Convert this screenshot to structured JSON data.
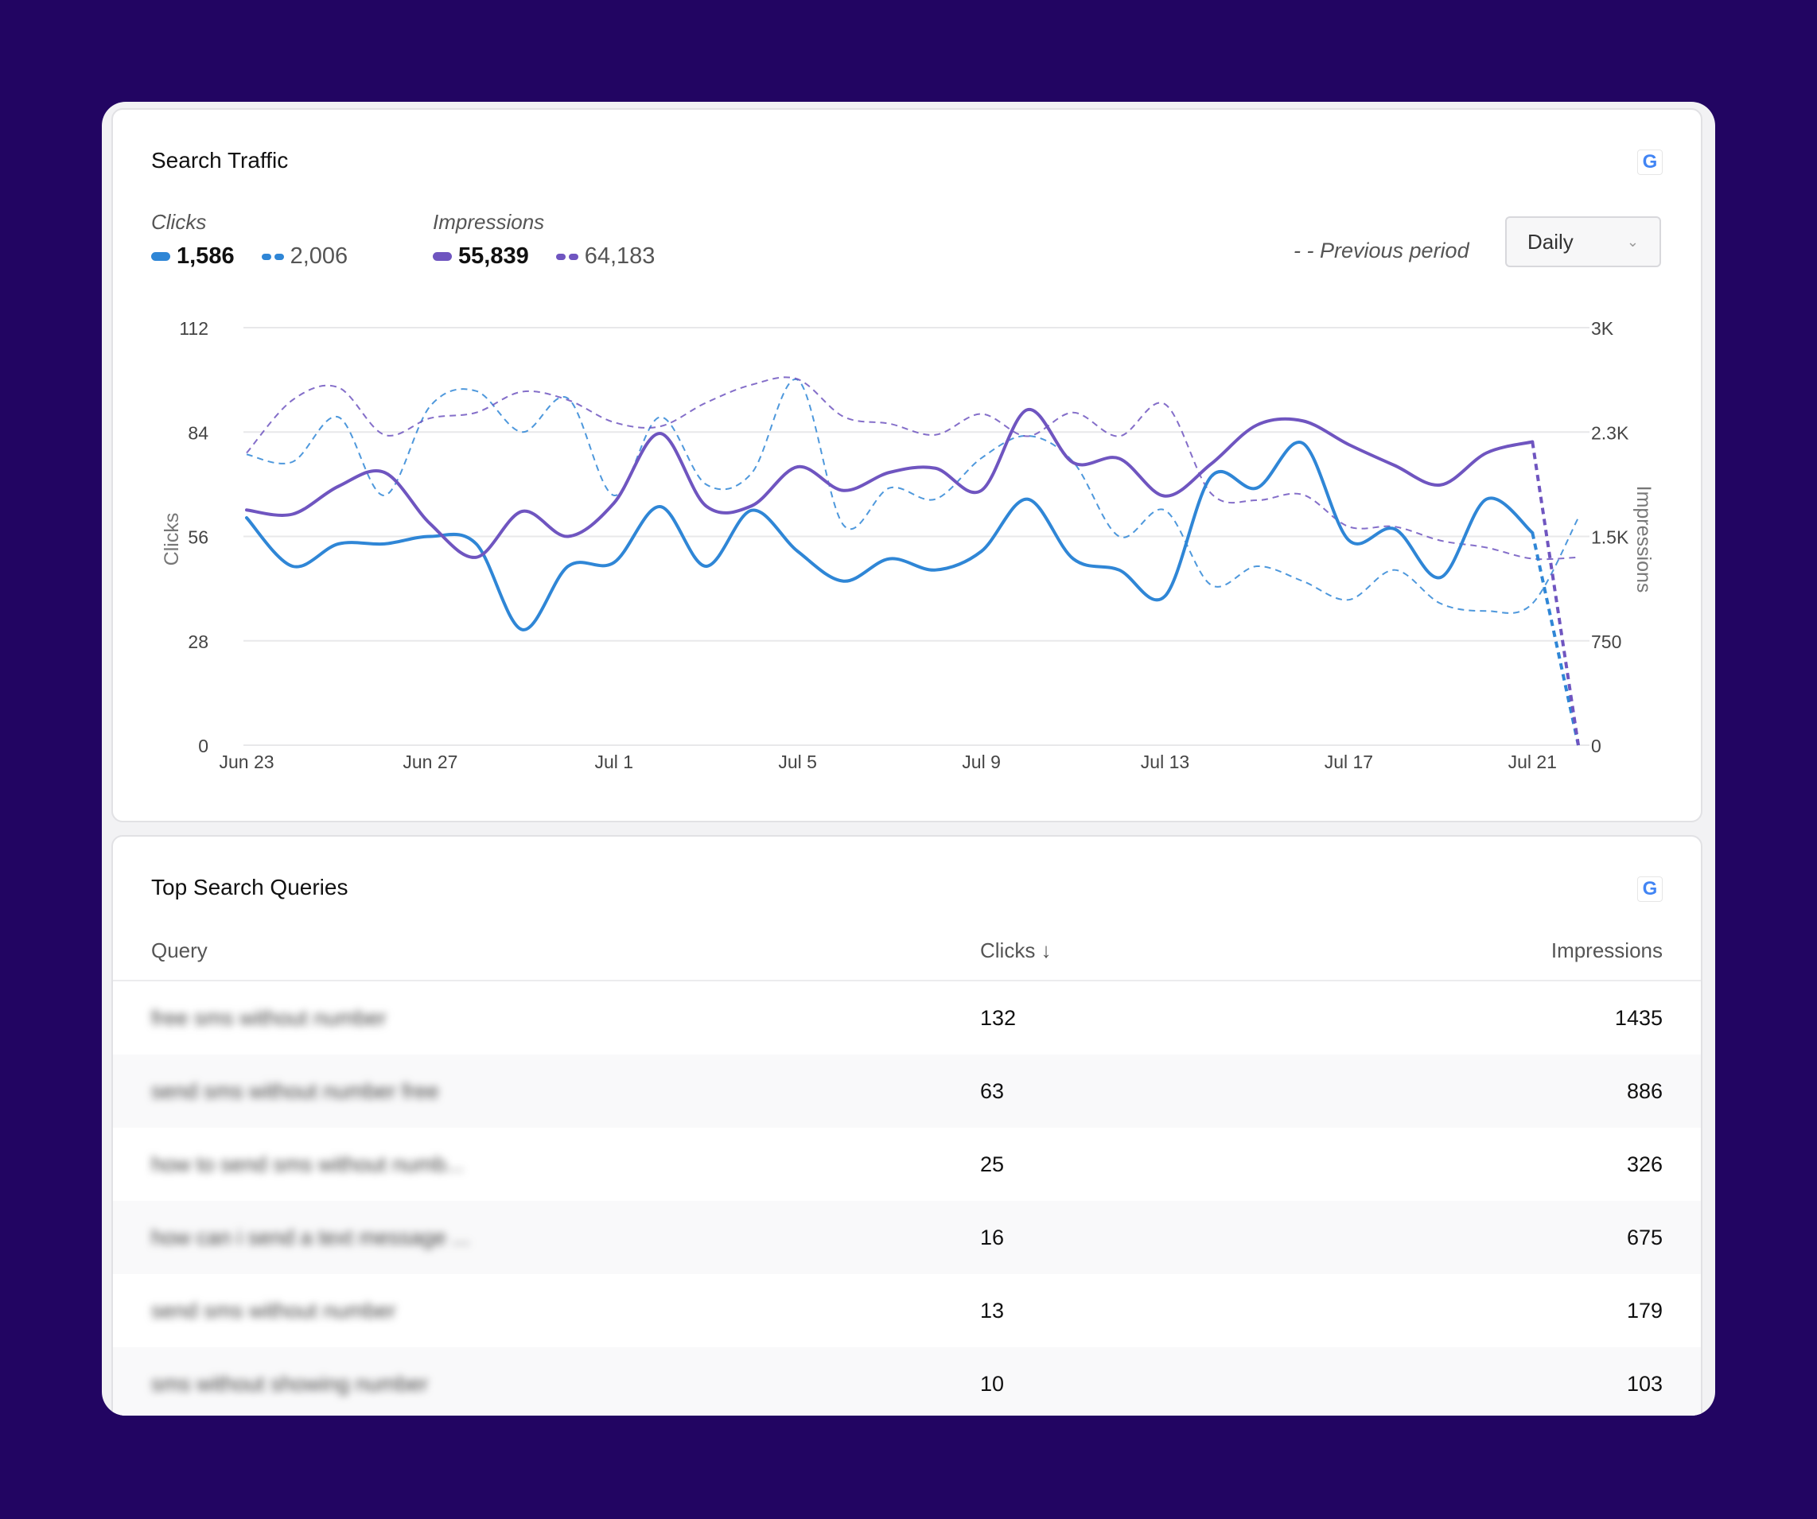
{
  "traffic": {
    "title": "Search Traffic",
    "clicks_label": "Clicks",
    "clicks_current": "1,586",
    "clicks_previous": "2,006",
    "impressions_label": "Impressions",
    "impressions_current": "55,839",
    "impressions_previous": "64,183",
    "previous_period_label": "- - Previous period",
    "granularity": "Daily",
    "colors": {
      "clicks": "#2f86d6",
      "impressions": "#6f55c0"
    }
  },
  "chart_data": {
    "type": "line",
    "title": "",
    "x": [
      "Jun 23",
      "Jun 24",
      "Jun 25",
      "Jun 26",
      "Jun 27",
      "Jun 28",
      "Jun 29",
      "Jun 30",
      "Jul 1",
      "Jul 2",
      "Jul 3",
      "Jul 4",
      "Jul 5",
      "Jul 6",
      "Jul 7",
      "Jul 8",
      "Jul 9",
      "Jul 10",
      "Jul 11",
      "Jul 12",
      "Jul 13",
      "Jul 14",
      "Jul 15",
      "Jul 16",
      "Jul 17",
      "Jul 18",
      "Jul 19",
      "Jul 20",
      "Jul 21",
      "Jul 22"
    ],
    "x_tick_labels": [
      "Jun 23",
      "Jun 27",
      "Jul 1",
      "Jul 5",
      "Jul 9",
      "Jul 13",
      "Jul 17",
      "Jul 21"
    ],
    "ylabel_left": "Clicks",
    "ylabel_right": "Impressions",
    "y_left_ticks": [
      "0",
      "28",
      "56",
      "84",
      "112"
    ],
    "y_right_ticks": [
      "0",
      "750",
      "1.5K",
      "2.3K",
      "3K"
    ],
    "ylim_left": [
      0,
      112
    ],
    "ylim_right": [
      0,
      3000
    ],
    "grid": true,
    "series": [
      {
        "name": "Clicks",
        "axis": "left",
        "style": "solid",
        "values": [
          61,
          48,
          54,
          54,
          56,
          54,
          31,
          48,
          49,
          64,
          48,
          63,
          52,
          44,
          50,
          47,
          52,
          66,
          50,
          47,
          40,
          72,
          69,
          81,
          55,
          58,
          45,
          66,
          57,
          0
        ]
      },
      {
        "name": "Clicks",
        "axis": "left",
        "style": "dashed",
        "period": "previous",
        "values": [
          78,
          76,
          88,
          67,
          91,
          95,
          84,
          93,
          67,
          88,
          70,
          73,
          98,
          59,
          69,
          66,
          77,
          83,
          76,
          56,
          63,
          43,
          48,
          44,
          39,
          47,
          38,
          36,
          38,
          61
        ]
      },
      {
        "name": "Impressions",
        "axis": "right",
        "style": "solid",
        "values": [
          1690,
          1660,
          1860,
          1960,
          1590,
          1350,
          1680,
          1500,
          1740,
          2240,
          1720,
          1720,
          2000,
          1830,
          1960,
          1990,
          1830,
          2410,
          2030,
          2060,
          1790,
          2020,
          2300,
          2330,
          2160,
          2010,
          1870,
          2100,
          2180,
          0
        ]
      },
      {
        "name": "Impressions",
        "axis": "right",
        "style": "dashed",
        "period": "previous",
        "values": [
          2100,
          2480,
          2570,
          2230,
          2350,
          2390,
          2540,
          2480,
          2320,
          2290,
          2460,
          2590,
          2630,
          2360,
          2310,
          2230,
          2380,
          2220,
          2390,
          2220,
          2450,
          1810,
          1760,
          1800,
          1570,
          1570,
          1470,
          1420,
          1340,
          1350
        ]
      }
    ]
  },
  "queries": {
    "title": "Top Search Queries",
    "columns": {
      "query": "Query",
      "clicks": "Clicks ↓",
      "impressions": "Impressions"
    },
    "rows": [
      {
        "query": "free sms without number",
        "clicks": "132",
        "impressions": "1435"
      },
      {
        "query": "send sms without number free",
        "clicks": "63",
        "impressions": "886"
      },
      {
        "query": "how to send sms without numb...",
        "clicks": "25",
        "impressions": "326"
      },
      {
        "query": "how can i send a text message ...",
        "clicks": "16",
        "impressions": "675"
      },
      {
        "query": "send sms without number",
        "clicks": "13",
        "impressions": "179"
      },
      {
        "query": "sms without showing number",
        "clicks": "10",
        "impressions": "103"
      }
    ]
  }
}
